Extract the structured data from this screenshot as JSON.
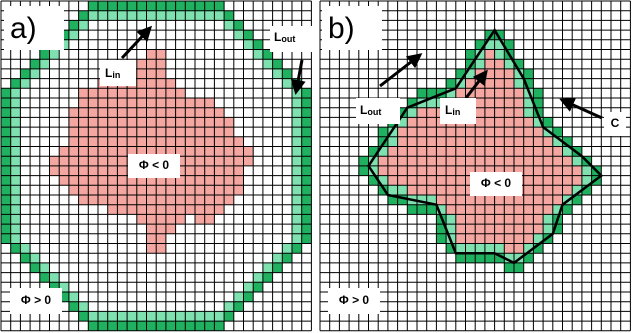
{
  "panels": [
    {
      "label": "a)",
      "l_in": {
        "main": "L",
        "sub": "in"
      },
      "l_out": {
        "main": "L",
        "sub": "out"
      },
      "inside": "Φ < 0",
      "outside": "Φ > 0"
    },
    {
      "label": "b)",
      "l_in": {
        "main": "L",
        "sub": "in"
      },
      "l_out": {
        "main": "L",
        "sub": "out"
      },
      "inside": "Φ < 0",
      "outside": "Φ > 0",
      "contour": "C"
    }
  ]
}
